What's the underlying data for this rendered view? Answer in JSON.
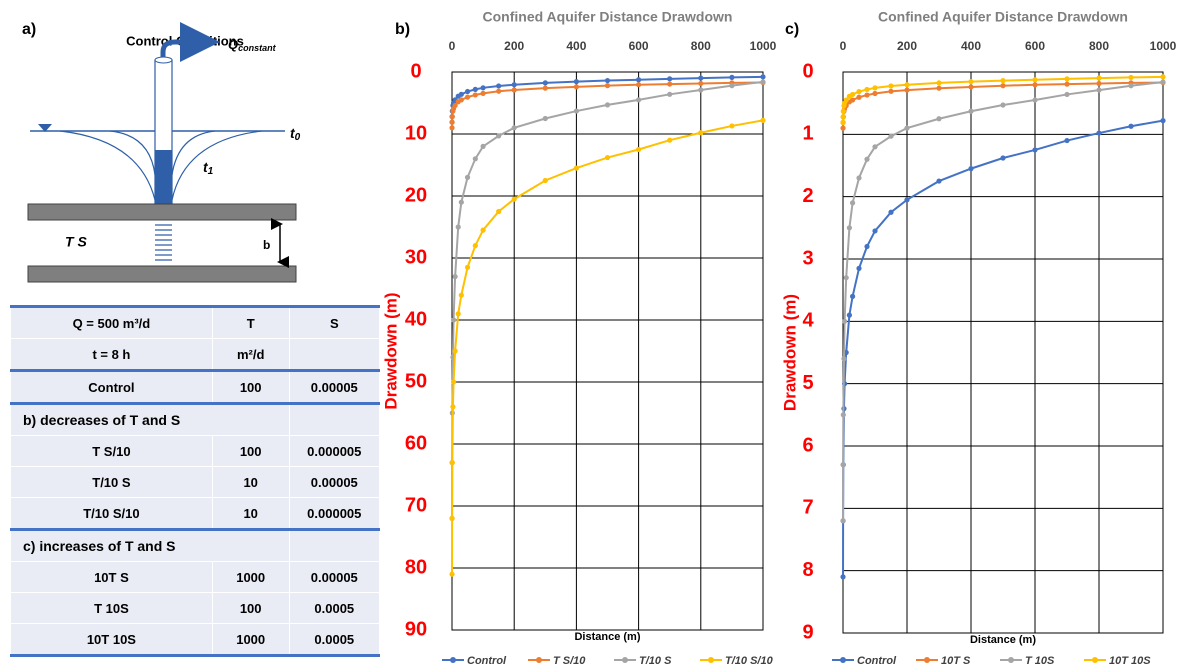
{
  "panel_a": {
    "label": "a)",
    "title": "Control Conditions",
    "flow_symbol": "Q",
    "flow_subscript": "constant",
    "time0_symbol": "t",
    "time0_subscript": "0",
    "time1_symbol": "t",
    "time1_subscript": "1",
    "aquifer_label": "T  S",
    "thickness_label": "b"
  },
  "table": {
    "header": [
      [
        "Q = 500 m³/d",
        "T",
        "S"
      ],
      [
        "t = 8 h",
        "m²/d"
      ]
    ],
    "rows": [
      [
        "Control",
        "100",
        "0.00005"
      ],
      [
        "b)    decreases of T and S"
      ],
      [
        "T  S/10",
        "100",
        "0.000005"
      ],
      [
        "T/10  S",
        "10",
        "0.00005"
      ],
      [
        "T/10  S/10",
        "10",
        "0.000005"
      ],
      [
        "c)    increases of T and S"
      ],
      [
        "10T  S",
        "1000",
        "0.00005"
      ],
      [
        "T  10S",
        "100",
        "0.0005"
      ],
      [
        "10T  10S",
        "1000",
        "0.0005"
      ]
    ]
  },
  "chart_data": [
    {
      "type": "line",
      "panel_label": "b)",
      "title": "Confined Aquifer Distance Drawdown",
      "x_label": "Distance (m)",
      "y_label": "Drawdown (m)",
      "x": [
        0.1,
        0.3,
        1,
        3,
        5,
        10,
        20,
        30,
        50,
        75,
        100,
        150,
        200,
        300,
        400,
        500,
        600,
        700,
        800,
        900,
        1000
      ],
      "xlim": [
        0,
        1000
      ],
      "xticks": [
        0,
        200,
        400,
        600,
        800,
        1000
      ],
      "ylim": [
        0,
        90
      ],
      "yticks": [
        0,
        10,
        20,
        30,
        40,
        50,
        60,
        70,
        80,
        90
      ],
      "y_inverted": true,
      "grid": true,
      "series": [
        {
          "name": "Control",
          "color": "#4472c4",
          "values": [
            8.1,
            7.2,
            6.3,
            5.4,
            5.0,
            4.5,
            3.9,
            3.6,
            3.15,
            2.8,
            2.55,
            2.25,
            2.05,
            1.75,
            1.55,
            1.38,
            1.25,
            1.1,
            0.98,
            0.87,
            0.78
          ]
        },
        {
          "name": "T  S/10",
          "color": "#ed7d31",
          "values": [
            9.0,
            8.1,
            7.2,
            6.3,
            5.9,
            5.4,
            4.8,
            4.5,
            4.05,
            3.7,
            3.45,
            3.1,
            2.9,
            2.6,
            2.4,
            2.2,
            2.05,
            1.95,
            1.85,
            1.75,
            1.7
          ]
        },
        {
          "name": "T/10  S",
          "color": "#a5a5a5",
          "values": [
            72,
            63,
            55,
            46,
            40,
            33,
            25,
            21,
            17,
            14,
            12,
            10.3,
            9,
            7.5,
            6.3,
            5.3,
            4.5,
            3.6,
            2.9,
            2.2,
            1.6
          ]
        },
        {
          "name": "T/10  S/10",
          "color": "#ffc000",
          "values": [
            81,
            72,
            63,
            54,
            50,
            45,
            39,
            36,
            31.5,
            28,
            25.5,
            22.5,
            20.5,
            17.5,
            15.5,
            13.8,
            12.5,
            11,
            9.8,
            8.7,
            7.8
          ]
        }
      ]
    },
    {
      "type": "line",
      "panel_label": "c)",
      "title": "Confined Aquifer Distance Drawdown",
      "x_label": "Distance (m)",
      "y_label": "Drawdown (m)",
      "x": [
        0.1,
        0.3,
        1,
        3,
        5,
        10,
        20,
        30,
        50,
        75,
        100,
        150,
        200,
        300,
        400,
        500,
        600,
        700,
        800,
        900,
        1000
      ],
      "xlim": [
        0,
        1000
      ],
      "xticks": [
        0,
        200,
        400,
        600,
        800,
        1000
      ],
      "ylim": [
        0,
        9
      ],
      "yticks": [
        0,
        1,
        2,
        3,
        4,
        5,
        6,
        7,
        8,
        9
      ],
      "y_inverted": true,
      "grid": true,
      "series": [
        {
          "name": "Control",
          "color": "#4472c4",
          "values": [
            8.1,
            7.2,
            6.3,
            5.4,
            5.0,
            4.5,
            3.9,
            3.6,
            3.15,
            2.8,
            2.55,
            2.25,
            2.05,
            1.75,
            1.55,
            1.38,
            1.25,
            1.1,
            0.98,
            0.87,
            0.78
          ]
        },
        {
          "name": "10T  S",
          "color": "#ed7d31",
          "values": [
            0.9,
            0.81,
            0.72,
            0.63,
            0.59,
            0.54,
            0.48,
            0.45,
            0.405,
            0.37,
            0.345,
            0.31,
            0.29,
            0.26,
            0.24,
            0.22,
            0.205,
            0.195,
            0.185,
            0.175,
            0.17
          ]
        },
        {
          "name": "T  10S",
          "color": "#a5a5a5",
          "values": [
            7.2,
            6.3,
            5.5,
            4.6,
            4.0,
            3.3,
            2.5,
            2.1,
            1.7,
            1.4,
            1.2,
            1.03,
            0.9,
            0.75,
            0.63,
            0.53,
            0.45,
            0.36,
            0.29,
            0.22,
            0.16
          ]
        },
        {
          "name": "10T 10S",
          "color": "#ffc000",
          "values": [
            0.81,
            0.72,
            0.63,
            0.54,
            0.5,
            0.45,
            0.39,
            0.36,
            0.315,
            0.28,
            0.255,
            0.225,
            0.205,
            0.175,
            0.155,
            0.138,
            0.125,
            0.11,
            0.098,
            0.087,
            0.078
          ]
        }
      ]
    }
  ]
}
